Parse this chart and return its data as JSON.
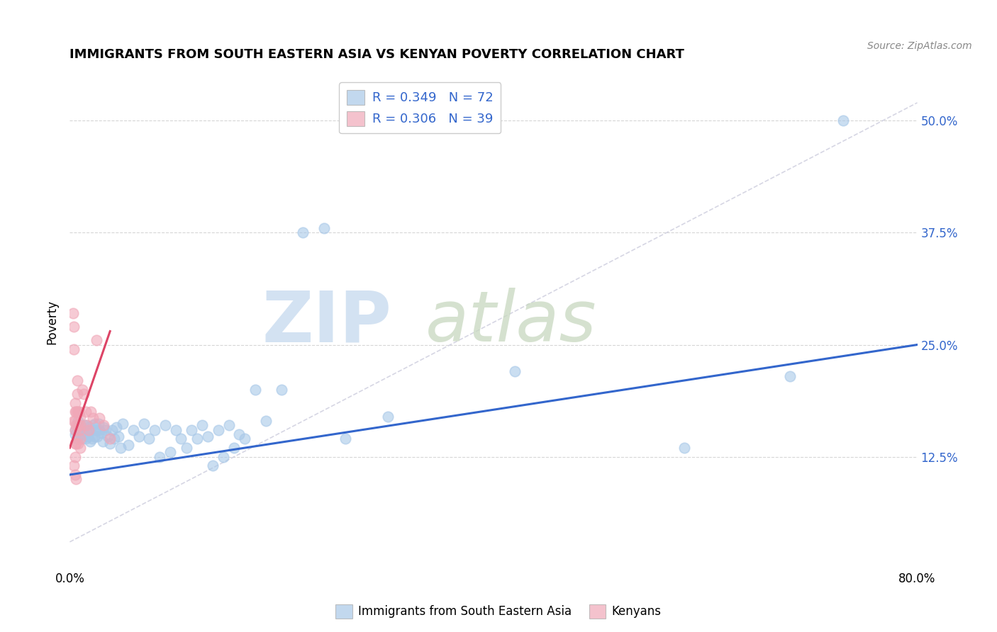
{
  "title": "IMMIGRANTS FROM SOUTH EASTERN ASIA VS KENYAN POVERTY CORRELATION CHART",
  "source": "Source: ZipAtlas.com",
  "ylabel": "Poverty",
  "xlim": [
    0,
    0.8
  ],
  "ylim": [
    0,
    0.55
  ],
  "yticks": [
    0.125,
    0.25,
    0.375,
    0.5
  ],
  "ytick_labels": [
    "12.5%",
    "25.0%",
    "37.5%",
    "50.0%"
  ],
  "xticks": [
    0.0,
    0.2,
    0.4,
    0.6,
    0.8
  ],
  "xtick_labels": [
    "0.0%",
    "",
    "",
    "",
    "80.0%"
  ],
  "legend1_label": "R = 0.349   N = 72",
  "legend2_label": "R = 0.306   N = 39",
  "blue_color": "#a8c8e8",
  "pink_color": "#f0a8b8",
  "blue_line_color": "#3366cc",
  "pink_line_color": "#dd4466",
  "grid_color": "#cccccc",
  "background_color": "#ffffff",
  "blue_scatter_x": [
    0.005,
    0.005,
    0.007,
    0.008,
    0.009,
    0.01,
    0.01,
    0.011,
    0.012,
    0.013,
    0.014,
    0.015,
    0.015,
    0.016,
    0.017,
    0.018,
    0.019,
    0.02,
    0.021,
    0.022,
    0.023,
    0.024,
    0.025,
    0.026,
    0.027,
    0.028,
    0.03,
    0.031,
    0.032,
    0.034,
    0.036,
    0.038,
    0.04,
    0.042,
    0.044,
    0.046,
    0.048,
    0.05,
    0.055,
    0.06,
    0.065,
    0.07,
    0.075,
    0.08,
    0.085,
    0.09,
    0.095,
    0.1,
    0.105,
    0.11,
    0.115,
    0.12,
    0.125,
    0.13,
    0.135,
    0.14,
    0.145,
    0.15,
    0.155,
    0.16,
    0.165,
    0.175,
    0.185,
    0.2,
    0.22,
    0.24,
    0.26,
    0.3,
    0.42,
    0.58,
    0.68,
    0.73
  ],
  "blue_scatter_y": [
    0.155,
    0.15,
    0.145,
    0.165,
    0.155,
    0.16,
    0.15,
    0.155,
    0.145,
    0.16,
    0.15,
    0.16,
    0.145,
    0.155,
    0.148,
    0.158,
    0.142,
    0.155,
    0.145,
    0.16,
    0.148,
    0.162,
    0.155,
    0.148,
    0.162,
    0.155,
    0.152,
    0.142,
    0.158,
    0.155,
    0.148,
    0.14,
    0.155,
    0.145,
    0.158,
    0.148,
    0.135,
    0.162,
    0.138,
    0.155,
    0.148,
    0.162,
    0.145,
    0.155,
    0.125,
    0.16,
    0.13,
    0.155,
    0.145,
    0.135,
    0.155,
    0.145,
    0.16,
    0.148,
    0.115,
    0.155,
    0.125,
    0.16,
    0.135,
    0.15,
    0.145,
    0.2,
    0.165,
    0.2,
    0.375,
    0.38,
    0.145,
    0.17,
    0.22,
    0.135,
    0.215,
    0.5
  ],
  "pink_scatter_x": [
    0.003,
    0.004,
    0.004,
    0.004,
    0.004,
    0.005,
    0.005,
    0.005,
    0.005,
    0.005,
    0.005,
    0.005,
    0.006,
    0.006,
    0.006,
    0.006,
    0.007,
    0.007,
    0.007,
    0.008,
    0.008,
    0.008,
    0.009,
    0.009,
    0.01,
    0.01,
    0.01,
    0.01,
    0.012,
    0.013,
    0.015,
    0.016,
    0.018,
    0.02,
    0.022,
    0.025,
    0.028,
    0.032,
    0.038
  ],
  "pink_scatter_y": [
    0.285,
    0.27,
    0.245,
    0.165,
    0.115,
    0.185,
    0.175,
    0.165,
    0.155,
    0.14,
    0.125,
    0.105,
    0.175,
    0.16,
    0.14,
    0.1,
    0.21,
    0.195,
    0.175,
    0.175,
    0.16,
    0.14,
    0.175,
    0.155,
    0.17,
    0.16,
    0.145,
    0.135,
    0.2,
    0.195,
    0.175,
    0.16,
    0.155,
    0.175,
    0.168,
    0.255,
    0.168,
    0.16,
    0.145
  ],
  "blue_trend_x": [
    0.0,
    0.8
  ],
  "blue_trend_y": [
    0.105,
    0.25
  ],
  "pink_trend_x": [
    0.0,
    0.038
  ],
  "pink_trend_y": [
    0.135,
    0.265
  ],
  "diag_line_x": [
    0.0,
    0.8
  ],
  "diag_line_y": [
    0.03,
    0.52
  ]
}
